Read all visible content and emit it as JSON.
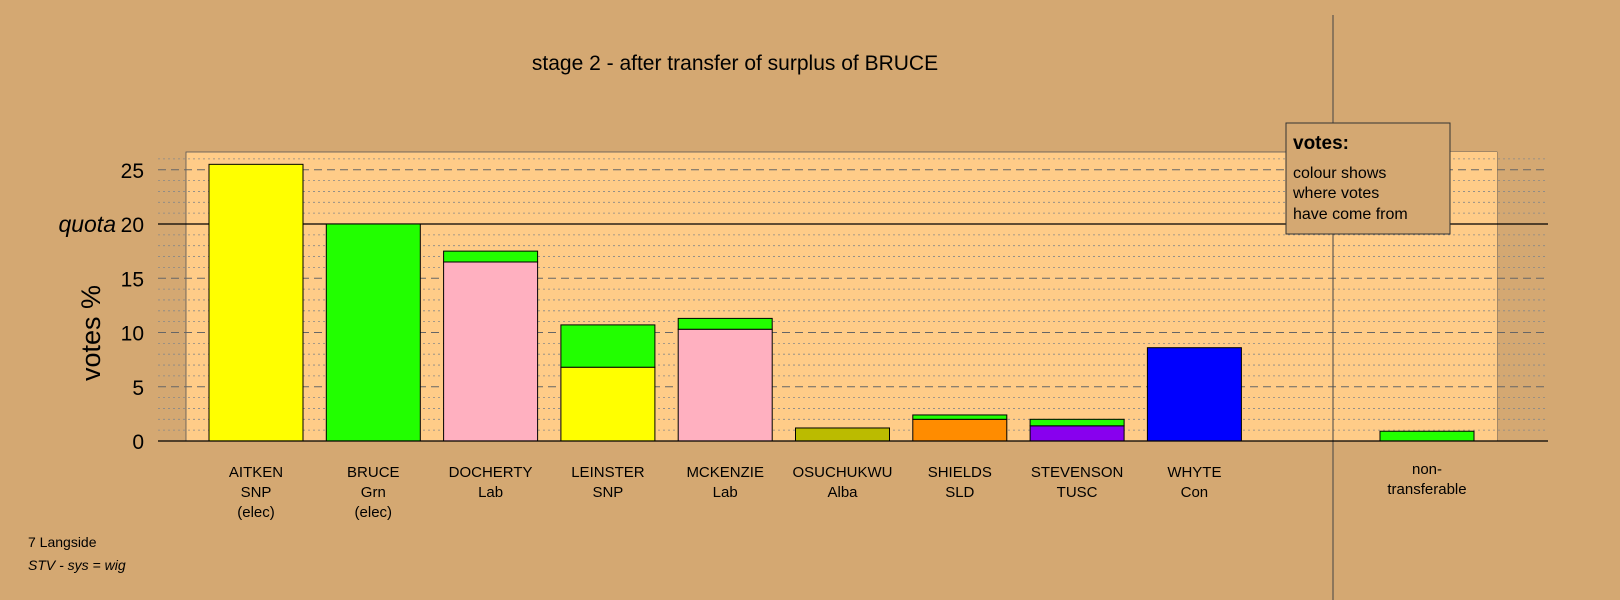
{
  "chart_data": {
    "type": "bar",
    "title": "stage 2 - after transfer of surplus of BRUCE",
    "ylabel": "votes %",
    "ylim": [
      0,
      26
    ],
    "yticks": [
      "0",
      "5",
      "10",
      "15",
      "20",
      "25"
    ],
    "quota_label": "quota",
    "quota_value": 20,
    "legend": {
      "heading": "votes:",
      "lines": [
        "colour shows",
        "where votes",
        "have come from"
      ],
      "placement": "top-right"
    },
    "colors": {
      "background": "#D4A872",
      "plot_area": "#FFCC88",
      "SNP": "#FFFF00",
      "Grn": "#22FF00",
      "Lab": "#FFB0C0",
      "Alba": "#BBBB00",
      "SLD": "#FF8C00",
      "TUSC": "#8800EE",
      "Con": "#0000FF"
    },
    "candidates": [
      {
        "label": [
          "AITKEN",
          "SNP",
          "(elec)"
        ],
        "segments": [
          {
            "from": "AITKEN",
            "value": 25.5,
            "color": "#FFFF00"
          }
        ]
      },
      {
        "label": [
          "BRUCE",
          "Grn",
          "(elec)"
        ],
        "segments": [
          {
            "from": "BRUCE",
            "value": 20.0,
            "color": "#22FF00"
          }
        ]
      },
      {
        "label": [
          "DOCHERTY",
          "Lab"
        ],
        "segments": [
          {
            "from": "DOCHERTY",
            "value": 16.5,
            "color": "#FFB0C0"
          },
          {
            "from": "BRUCE",
            "value": 1.0,
            "color": "#22FF00"
          }
        ]
      },
      {
        "label": [
          "LEINSTER",
          "SNP"
        ],
        "segments": [
          {
            "from": "LEINSTER",
            "value": 6.8,
            "color": "#FFFF00"
          },
          {
            "from": "BRUCE",
            "value": 3.9,
            "color": "#22FF00"
          }
        ]
      },
      {
        "label": [
          "MCKENZIE",
          "Lab"
        ],
        "segments": [
          {
            "from": "MCKENZIE",
            "value": 10.3,
            "color": "#FFB0C0"
          },
          {
            "from": "BRUCE",
            "value": 1.0,
            "color": "#22FF00"
          }
        ]
      },
      {
        "label": [
          "OSUCHUKWU",
          "Alba"
        ],
        "segments": [
          {
            "from": "OSUCHUKWU",
            "value": 1.2,
            "color": "#BBBB00"
          }
        ]
      },
      {
        "label": [
          "SHIELDS",
          "SLD"
        ],
        "segments": [
          {
            "from": "SHIELDS",
            "value": 2.0,
            "color": "#FF8C00"
          },
          {
            "from": "BRUCE",
            "value": 0.4,
            "color": "#22FF00"
          }
        ]
      },
      {
        "label": [
          "STEVENSON",
          "TUSC"
        ],
        "segments": [
          {
            "from": "STEVENSON",
            "value": 1.4,
            "color": "#8800EE"
          },
          {
            "from": "BRUCE",
            "value": 0.6,
            "color": "#22FF00"
          }
        ]
      },
      {
        "label": [
          "WHYTE",
          "Con"
        ],
        "segments": [
          {
            "from": "WHYTE",
            "value": 8.6,
            "color": "#0000FF"
          }
        ]
      }
    ],
    "nontransferable": {
      "label": [
        "non-",
        "transferable"
      ],
      "segments": [
        {
          "from": "BRUCE",
          "value": 0.9,
          "color": "#22FF00"
        }
      ]
    }
  },
  "footer": {
    "ward": "7 Langside",
    "system": "STV - sys = wig"
  }
}
